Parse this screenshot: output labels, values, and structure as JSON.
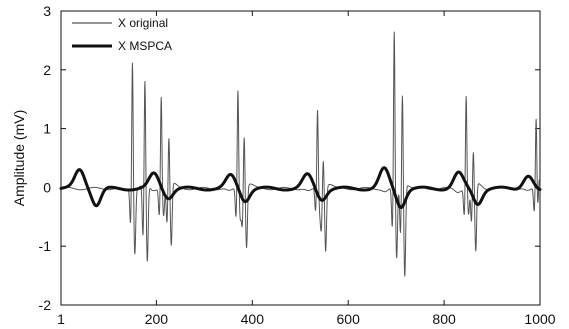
{
  "chart_data": {
    "type": "line",
    "title": "",
    "xlabel": "",
    "ylabel": "Amplitude (mV)",
    "xlim": [
      1,
      1000
    ],
    "ylim": [
      -2,
      3
    ],
    "xticks": [
      1,
      200,
      400,
      600,
      800,
      1000
    ],
    "yticks": [
      -2,
      -1,
      0,
      1,
      2,
      3
    ],
    "grid": false,
    "legend_position": "top-left",
    "series": [
      {
        "name": "X original",
        "color": "#555555",
        "line_width": "thin",
        "beats": [
          {
            "r": 150,
            "amp": 2.2,
            "qdepth": 1.1,
            "sdepth": 0.6
          },
          {
            "r": 176,
            "amp": 1.8,
            "qdepth": 1.3,
            "sdepth": 0.9
          },
          {
            "r": 210,
            "amp": 1.6,
            "qdepth": 0.45,
            "sdepth": 0.45
          },
          {
            "r": 226,
            "amp": 0.85,
            "qdepth": 1.05,
            "sdepth": 0.6
          },
          {
            "r": 370,
            "amp": 1.7,
            "qdepth": 0.5,
            "sdepth": 0.5
          },
          {
            "r": 383,
            "amp": 0.9,
            "qdepth": 1.05,
            "sdepth": 0.6
          },
          {
            "r": 536,
            "amp": 1.35,
            "qdepth": 0.4,
            "sdepth": 0.4
          },
          {
            "r": 548,
            "amp": 0.5,
            "qdepth": 1.1,
            "sdepth": 0.6
          },
          {
            "r": 696,
            "amp": 2.7,
            "qdepth": 1.2,
            "sdepth": 0.7
          },
          {
            "r": 713,
            "amp": 1.6,
            "qdepth": 1.55,
            "sdepth": 0.8
          },
          {
            "r": 846,
            "amp": 1.6,
            "qdepth": 0.45,
            "sdepth": 0.45
          },
          {
            "r": 861,
            "amp": 0.6,
            "qdepth": 1.15,
            "sdepth": 0.6
          },
          {
            "r": 992,
            "amp": 1.3,
            "qdepth": 0.35,
            "sdepth": 0.4
          },
          {
            "r": 998,
            "amp": 0.45,
            "qdepth": 0.3,
            "sdepth": 0.2
          }
        ],
        "baseline_offset": -0.02
      },
      {
        "name": "X MSPCA",
        "color": "#111111",
        "line_width": "thick",
        "beats": [
          {
            "hump": 40,
            "hump_amp": 0.32,
            "trough": 75,
            "trough_amp": -0.28
          },
          {
            "hump": 195,
            "hump_amp": 0.25,
            "trough": 225,
            "trough_amp": -0.15
          },
          {
            "hump": 355,
            "hump_amp": 0.22,
            "trough": 385,
            "trough_amp": -0.2
          },
          {
            "hump": 515,
            "hump_amp": 0.23,
            "trough": 545,
            "trough_amp": -0.18
          },
          {
            "hump": 675,
            "hump_amp": 0.33,
            "trough": 710,
            "trough_amp": -0.3
          },
          {
            "hump": 830,
            "hump_amp": 0.26,
            "trough": 870,
            "trough_amp": -0.25
          },
          {
            "hump": 975,
            "hump_amp": 0.22,
            "trough": 1000,
            "trough_amp": -0.05
          }
        ]
      }
    ]
  }
}
